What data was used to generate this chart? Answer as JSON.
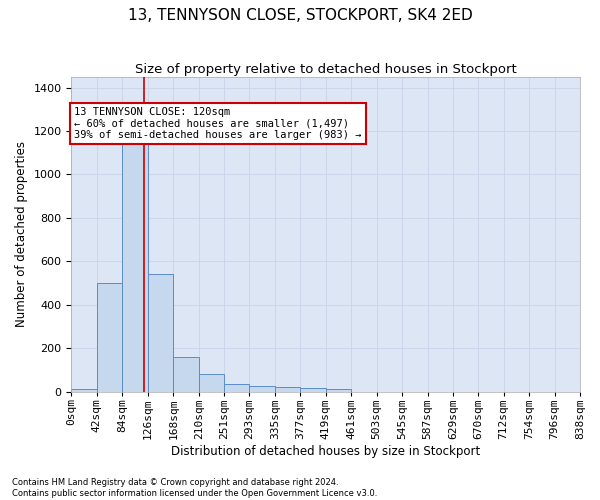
{
  "title": "13, TENNYSON CLOSE, STOCKPORT, SK4 2ED",
  "subtitle": "Size of property relative to detached houses in Stockport",
  "xlabel": "Distribution of detached houses by size in Stockport",
  "ylabel": "Number of detached properties",
  "footer1": "Contains HM Land Registry data © Crown copyright and database right 2024.",
  "footer2": "Contains public sector information licensed under the Open Government Licence v3.0.",
  "annotation_line1": "13 TENNYSON CLOSE: 120sqm",
  "annotation_line2": "← 60% of detached houses are smaller (1,497)",
  "annotation_line3": "39% of semi-detached houses are larger (983) →",
  "property_size": 120,
  "bin_edges": [
    0,
    42,
    84,
    126,
    168,
    210,
    251,
    293,
    335,
    377,
    419,
    461,
    503,
    545,
    587,
    629,
    670,
    712,
    754,
    796,
    838
  ],
  "bar_heights": [
    10,
    500,
    1150,
    540,
    160,
    80,
    35,
    25,
    20,
    15,
    10,
    0,
    0,
    0,
    0,
    0,
    0,
    0,
    0,
    0
  ],
  "bar_color": "#c5d8ed",
  "bar_edge_color": "#5b8cc8",
  "grid_color": "#c8d4e8",
  "bg_color": "#dce6f5",
  "red_line_color": "#cc0000",
  "annotation_box_color": "#cc0000",
  "ylim": [
    0,
    1450
  ],
  "yticks": [
    0,
    200,
    400,
    600,
    800,
    1000,
    1200,
    1400
  ],
  "tick_label_fontsize": 8,
  "title_fontsize": 11,
  "subtitle_fontsize": 9.5,
  "xlabel_fontsize": 8.5,
  "ylabel_fontsize": 8.5,
  "annotation_fontsize": 7.5,
  "footer_fontsize": 6
}
